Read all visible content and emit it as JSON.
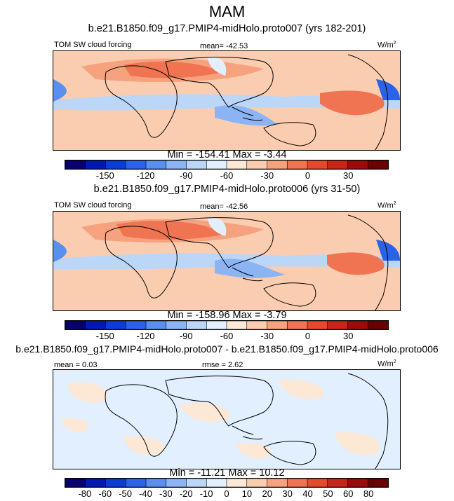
{
  "title": "MAM",
  "panels": [
    {
      "case_title": "b.e21.B1850.f09_g17.PMIP4-midHolo.proto007 (yrs 182-201)",
      "left_label": "TOM SW cloud forcing",
      "center_label": "mean= -42.53",
      "units": "W/m",
      "units_exp": "2",
      "minmax": "Min = -154.41 Max =  -3.44",
      "colorbar": "abs"
    },
    {
      "case_title": "b.e21.B1850.f09_g17.PMIP4-midHolo.proto006 (yrs 31-50)",
      "left_label": "TOM SW cloud forcing",
      "center_label": "mean= -42.56",
      "units": "W/m",
      "units_exp": "2",
      "minmax": "Min = -158.96 Max =  -3.79",
      "colorbar": "abs"
    },
    {
      "case_title": "b.e21.B1850.f09_g17.PMIP4-midHolo.proto007 - b.e21.B1850.f09_g17.PMIP4-midHolo.proto006",
      "left_label": "mean =  0.03",
      "center_label": "rmse =  2.62",
      "units": "W/m",
      "units_exp": "2",
      "minmax": "Min = -11.21 Max =  10.12",
      "colorbar": "diff"
    }
  ],
  "colorbars": {
    "abs": {
      "colors": [
        "#08006e",
        "#0019b0",
        "#0a3cd6",
        "#2b63e8",
        "#5a8ff0",
        "#8cb4f5",
        "#bcd6f8",
        "#e2efff",
        "#fde8d6",
        "#fbcdb0",
        "#f6a27f",
        "#f07452",
        "#e4492c",
        "#c8251a",
        "#9a0b0b",
        "#6b0000"
      ],
      "tick_labels": [
        "-150",
        "-120",
        "-90",
        "-60",
        "-30",
        "0",
        "30"
      ]
    },
    "diff": {
      "colors": [
        "#08006e",
        "#0019b0",
        "#0a3cd6",
        "#2b63e8",
        "#5a8ff0",
        "#8cb4f5",
        "#bcd6f8",
        "#e2efff",
        "#fde8d6",
        "#fbcdb0",
        "#f6a27f",
        "#f07452",
        "#e4492c",
        "#c8251a",
        "#9a0b0b",
        "#6b0000"
      ],
      "tick_labels": [
        "-80",
        "-60",
        "-50",
        "-40",
        "-30",
        "-20",
        "-10",
        "0",
        "10",
        "20",
        "30",
        "40",
        "50",
        "60",
        "80"
      ]
    }
  }
}
